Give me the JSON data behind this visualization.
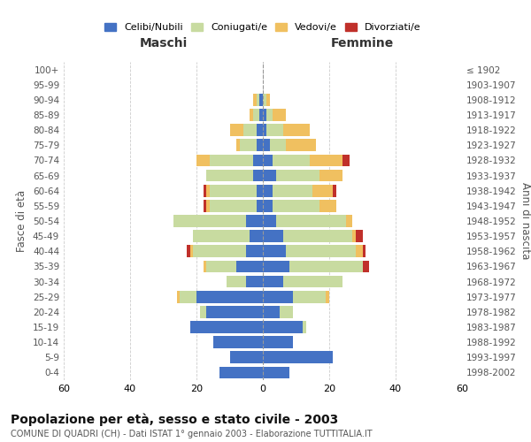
{
  "age_groups": [
    "0-4",
    "5-9",
    "10-14",
    "15-19",
    "20-24",
    "25-29",
    "30-34",
    "35-39",
    "40-44",
    "45-49",
    "50-54",
    "55-59",
    "60-64",
    "65-69",
    "70-74",
    "75-79",
    "80-84",
    "85-89",
    "90-94",
    "95-99",
    "100+"
  ],
  "birth_years": [
    "1998-2002",
    "1993-1997",
    "1988-1992",
    "1983-1987",
    "1978-1982",
    "1973-1977",
    "1968-1972",
    "1963-1967",
    "1958-1962",
    "1953-1957",
    "1948-1952",
    "1943-1947",
    "1938-1942",
    "1933-1937",
    "1928-1932",
    "1923-1927",
    "1918-1922",
    "1913-1917",
    "1908-1912",
    "1903-1907",
    "≤ 1902"
  ],
  "maschi": {
    "celibe": [
      13,
      10,
      15,
      22,
      17,
      20,
      5,
      8,
      5,
      4,
      5,
      2,
      2,
      3,
      3,
      2,
      2,
      1,
      1,
      0,
      0
    ],
    "coniugato": [
      0,
      0,
      0,
      0,
      2,
      5,
      6,
      9,
      16,
      17,
      22,
      14,
      14,
      14,
      13,
      5,
      4,
      2,
      1,
      0,
      0
    ],
    "vedovo": [
      0,
      0,
      0,
      0,
      0,
      1,
      0,
      1,
      1,
      0,
      0,
      1,
      1,
      0,
      4,
      1,
      4,
      1,
      1,
      0,
      0
    ],
    "divorziato": [
      0,
      0,
      0,
      0,
      0,
      0,
      0,
      0,
      1,
      0,
      0,
      1,
      1,
      0,
      0,
      0,
      0,
      0,
      0,
      0,
      0
    ]
  },
  "femmine": {
    "nubile": [
      8,
      21,
      9,
      12,
      5,
      9,
      6,
      8,
      7,
      6,
      4,
      3,
      3,
      4,
      3,
      2,
      1,
      1,
      0,
      0,
      0
    ],
    "coniugata": [
      0,
      0,
      0,
      1,
      4,
      10,
      18,
      22,
      21,
      21,
      21,
      14,
      12,
      13,
      11,
      5,
      5,
      2,
      1,
      0,
      0
    ],
    "vedova": [
      0,
      0,
      0,
      0,
      0,
      1,
      0,
      0,
      2,
      1,
      2,
      5,
      6,
      7,
      10,
      9,
      8,
      4,
      1,
      0,
      0
    ],
    "divorziata": [
      0,
      0,
      0,
      0,
      0,
      0,
      0,
      2,
      1,
      2,
      0,
      0,
      1,
      0,
      2,
      0,
      0,
      0,
      0,
      0,
      0
    ]
  },
  "color_celibe": "#4472C4",
  "color_coniugato": "#c8dba0",
  "color_vedovo": "#f0c060",
  "color_divorziato": "#c0302a",
  "xlim": 60,
  "title_main": "Popolazione per età, sesso e stato civile - 2003",
  "title_sub": "COMUNE DI QUADRI (CH) - Dati ISTAT 1° gennaio 2003 - Elaborazione TUTTITALIA.IT",
  "ylabel_left": "Fasce di età",
  "ylabel_right": "Anni di nascita",
  "xlabel_maschi": "Maschi",
  "xlabel_femmine": "Femmine",
  "legend_labels": [
    "Celibi/Nubili",
    "Coniugati/e",
    "Vedovi/e",
    "Divorziati/e"
  ],
  "background_color": "#ffffff",
  "grid_color": "#cccccc"
}
